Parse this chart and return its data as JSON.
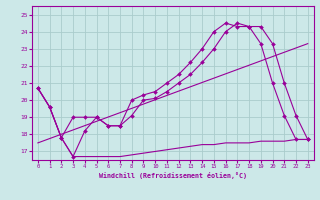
{
  "bg_color": "#cce8e8",
  "grid_color": "#aacccc",
  "line_color": "#990099",
  "xlim": [
    -0.5,
    23.5
  ],
  "ylim": [
    16.5,
    25.5
  ],
  "yticks": [
    17,
    18,
    19,
    20,
    21,
    22,
    23,
    24,
    25
  ],
  "xticks": [
    0,
    1,
    2,
    3,
    4,
    5,
    6,
    7,
    8,
    9,
    10,
    11,
    12,
    13,
    14,
    15,
    16,
    17,
    18,
    19,
    20,
    21,
    22,
    23
  ],
  "xlabel": "Windchill (Refroidissement éolien,°C)",
  "line1_x": [
    0,
    1,
    2,
    3,
    4,
    5,
    6,
    7,
    8,
    9,
    10,
    11,
    12,
    13,
    14,
    15,
    16,
    17,
    18,
    19,
    20,
    21,
    22,
    23
  ],
  "line1_y": [
    20.7,
    19.6,
    17.8,
    16.7,
    18.2,
    19.0,
    18.5,
    18.5,
    19.1,
    20.0,
    20.1,
    20.5,
    21.0,
    21.5,
    22.2,
    23.0,
    24.0,
    24.5,
    24.3,
    24.3,
    23.3,
    21.0,
    19.1,
    17.7
  ],
  "line2_x": [
    0,
    1,
    2,
    3,
    4,
    5,
    6,
    7,
    8,
    9,
    10,
    11,
    12,
    13,
    14,
    15,
    16,
    17,
    18,
    19,
    20,
    21,
    22,
    23
  ],
  "line2_y": [
    20.7,
    19.6,
    17.8,
    19.0,
    19.0,
    19.0,
    18.5,
    18.5,
    20.0,
    20.3,
    20.5,
    21.0,
    21.5,
    22.2,
    23.0,
    24.0,
    24.5,
    24.3,
    24.3,
    23.3,
    21.0,
    19.1,
    17.7,
    17.7
  ],
  "line3_x": [
    0,
    23
  ],
  "line3_y": [
    17.5,
    23.3
  ],
  "line_flat_x": [
    0,
    1,
    2,
    3,
    4,
    5,
    6,
    7,
    8,
    9,
    10,
    11,
    12,
    13,
    14,
    15,
    16,
    17,
    18,
    19,
    20,
    21,
    22,
    23
  ],
  "line_flat_y": [
    20.7,
    19.6,
    17.8,
    16.7,
    16.7,
    16.7,
    16.7,
    16.7,
    16.8,
    16.9,
    17.0,
    17.1,
    17.2,
    17.3,
    17.4,
    17.4,
    17.5,
    17.5,
    17.5,
    17.6,
    17.6,
    17.6,
    17.7,
    17.7
  ]
}
